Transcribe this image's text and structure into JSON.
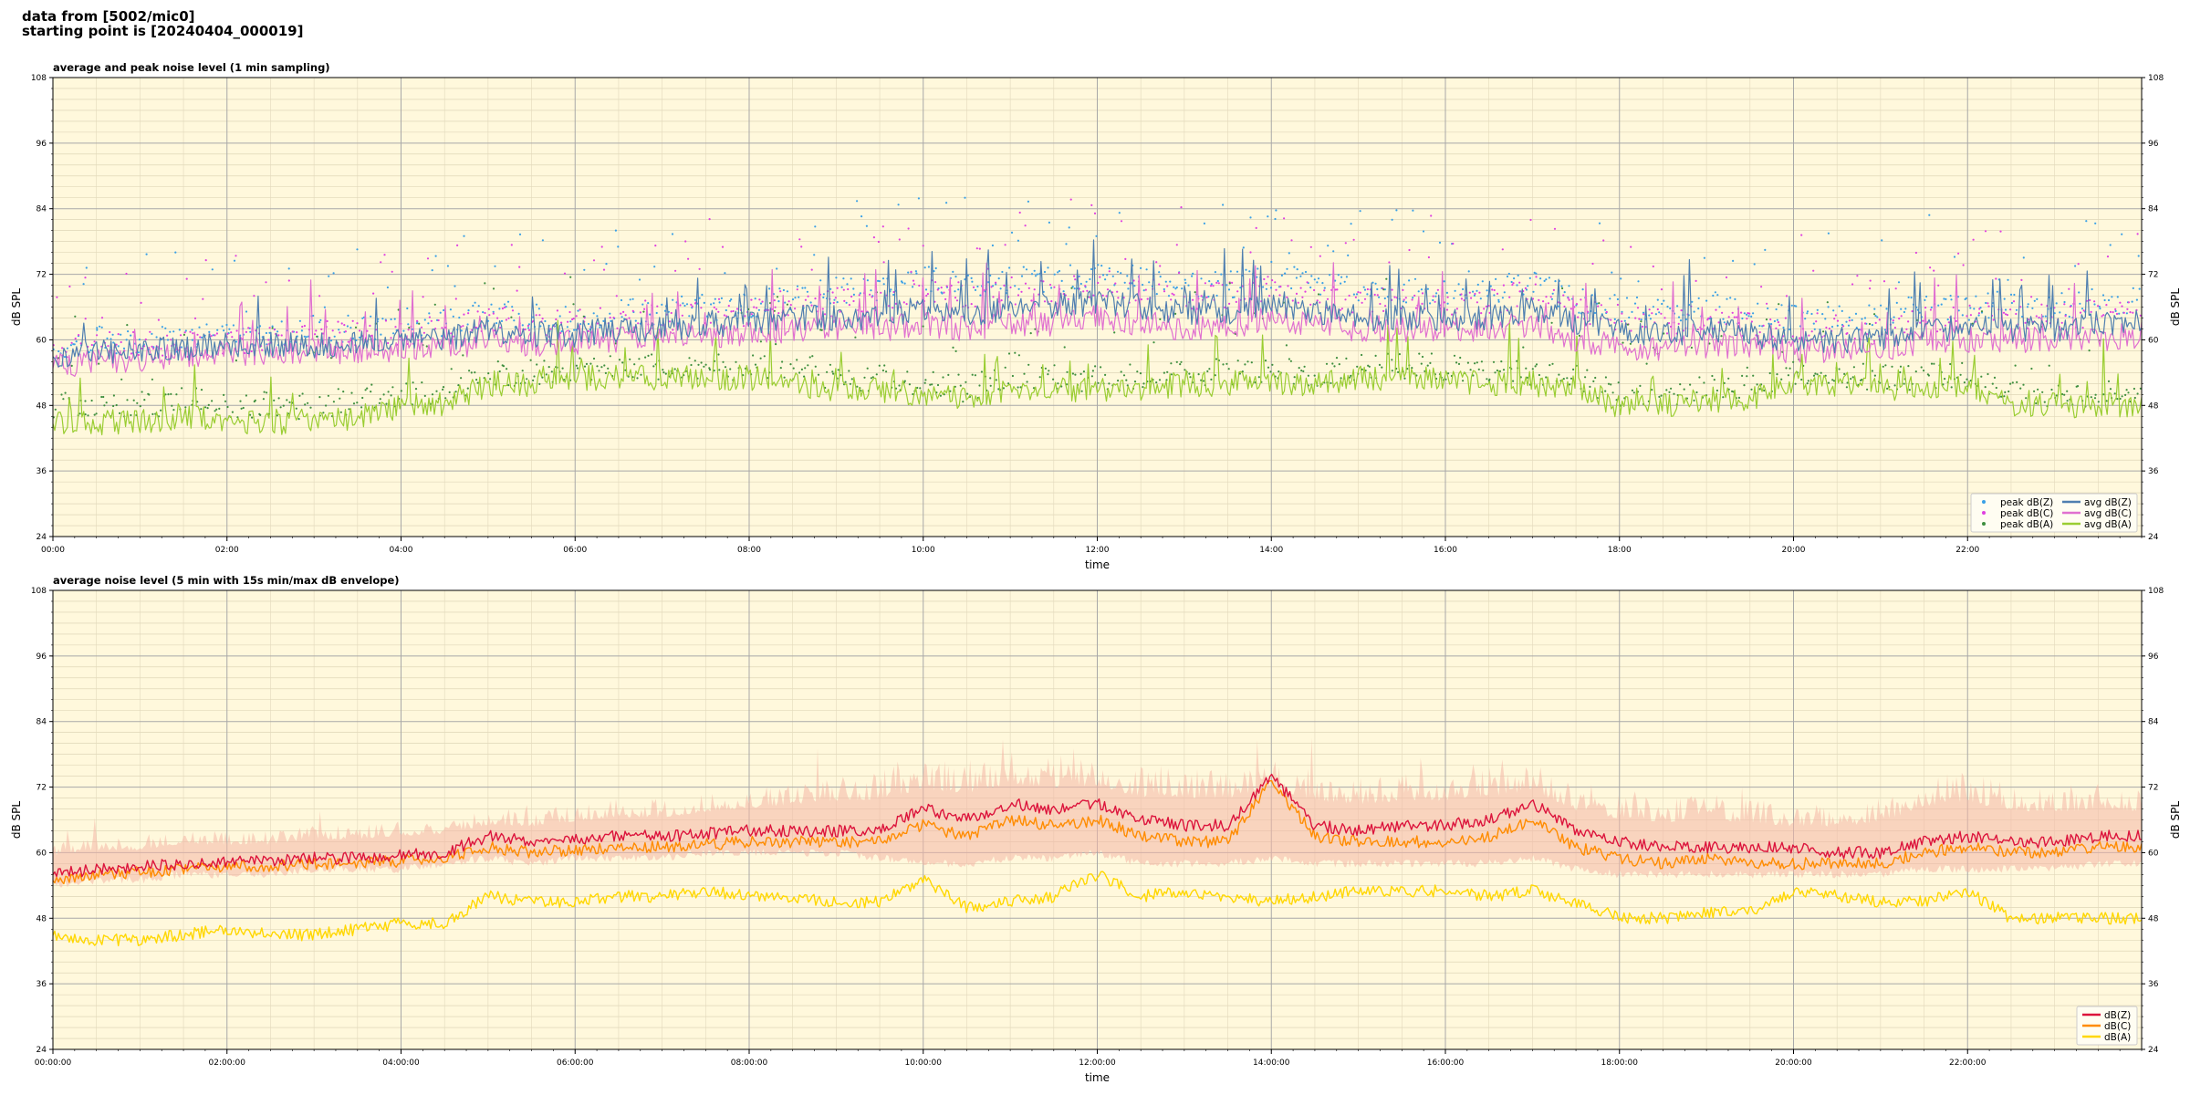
{
  "header": {
    "line1": "data from [5002/mic0]",
    "line2": "starting point is [20240404_000019]"
  },
  "colors": {
    "background": "#fff8dc",
    "peak_z": "#3aa0e6",
    "peak_c": "#e040e0",
    "peak_a": "#3f8f3f",
    "avg_z": "#4f7fb0",
    "avg_c": "#e070d0",
    "avg_a": "#9acd32",
    "env_z": "#dc143c",
    "env_c": "#ff8c00",
    "env_a": "#ffd700",
    "envelope_fill": "#f4b6a6"
  },
  "chart_data": [
    {
      "type": "line+scatter",
      "title": "average and peak noise level (1 min sampling)",
      "xlabel": "time",
      "ylabel": "dB SPL",
      "ylabel_right": "dB SPL",
      "x_unit": "hours",
      "xlim": [
        0,
        24
      ],
      "ylim": [
        24,
        108
      ],
      "x_ticks": [
        0,
        2,
        4,
        6,
        8,
        10,
        12,
        14,
        16,
        18,
        20,
        22
      ],
      "x_tick_labels": [
        "00:00",
        "02:00",
        "04:00",
        "06:00",
        "08:00",
        "10:00",
        "12:00",
        "14:00",
        "16:00",
        "18:00",
        "20:00",
        "22:00"
      ],
      "y_ticks": [
        24,
        36,
        48,
        60,
        72,
        84,
        96,
        108
      ],
      "y_tick_labels": [
        "24",
        "36",
        "48",
        "60",
        "72",
        "84",
        "96",
        "108"
      ],
      "grid": true,
      "legend_position": "lower-right",
      "legend": [
        "peak dB(Z)",
        "peak dB(C)",
        "peak dB(A)",
        "avg dB(Z)",
        "avg dB(C)",
        "avg dB(A)"
      ],
      "x": [
        0,
        0.5,
        1,
        1.5,
        2,
        2.5,
        3,
        3.5,
        4,
        4.5,
        5,
        5.5,
        6,
        6.5,
        7,
        7.5,
        8,
        8.5,
        9,
        9.5,
        10,
        10.5,
        11,
        11.5,
        12,
        12.5,
        13,
        13.5,
        14,
        14.5,
        15,
        15.5,
        16,
        16.5,
        17,
        17.5,
        18,
        18.5,
        19,
        19.5,
        20,
        20.5,
        21,
        21.5,
        22,
        22.5,
        23,
        23.5,
        24
      ],
      "series": [
        {
          "name": "avg dB(Z)",
          "kind": "line",
          "values": [
            57,
            58,
            58,
            58.5,
            59,
            59,
            59,
            59.5,
            60,
            60,
            62,
            61,
            61,
            62,
            62,
            63,
            63,
            64,
            64,
            64,
            66,
            64,
            66,
            66,
            67,
            66,
            65,
            65,
            67,
            65,
            64,
            64,
            64,
            64,
            66,
            63,
            62,
            61,
            62,
            61,
            60,
            60,
            60,
            62,
            62,
            62,
            62,
            63,
            63
          ]
        },
        {
          "name": "avg dB(C)",
          "kind": "line",
          "values": [
            55,
            56,
            56.5,
            57,
            57.5,
            57.5,
            58,
            58,
            58.5,
            58.5,
            60,
            59,
            59.5,
            60,
            60.5,
            61,
            61,
            62,
            62,
            62,
            63,
            62,
            63,
            63,
            64,
            63,
            62,
            62,
            64,
            63,
            62,
            62,
            62,
            62,
            63,
            60,
            59,
            58,
            59,
            59,
            58,
            58,
            58,
            60,
            60,
            60,
            60,
            60,
            61
          ]
        },
        {
          "name": "avg dB(A)",
          "kind": "line",
          "values": [
            45,
            45,
            45,
            46,
            45,
            45,
            45,
            46,
            48,
            48,
            52,
            52,
            53,
            53,
            53,
            53,
            53,
            52,
            51,
            51,
            50,
            49,
            51,
            51,
            51,
            51,
            52,
            52,
            52,
            52,
            53,
            53,
            53,
            52,
            52,
            51,
            48,
            48,
            49,
            49,
            52,
            52,
            51,
            51,
            52,
            48,
            48,
            48,
            48
          ]
        },
        {
          "name": "peak dB(Z)",
          "kind": "scatter",
          "values": [
            59,
            60,
            60,
            60,
            61,
            61,
            62,
            62,
            62,
            63,
            65,
            64,
            64,
            65,
            65,
            66,
            66,
            68,
            69,
            69,
            71,
            70,
            71,
            71,
            72,
            71,
            70,
            70,
            72,
            70,
            69,
            69,
            69,
            69,
            71,
            67,
            66,
            65,
            66,
            65,
            64,
            64,
            64,
            66,
            66,
            67,
            66,
            67,
            67
          ]
        },
        {
          "name": "peak dB(C)",
          "kind": "scatter",
          "values": [
            58,
            59,
            59,
            59,
            60,
            60,
            61,
            61,
            61,
            62,
            64,
            63,
            63,
            64,
            64,
            65,
            65,
            67,
            67,
            67,
            69,
            68,
            69,
            69,
            70,
            69,
            68,
            68,
            70,
            68,
            67,
            67,
            67,
            67,
            69,
            65,
            64,
            63,
            64,
            63,
            62,
            62,
            62,
            64,
            64,
            65,
            64,
            65,
            65
          ]
        },
        {
          "name": "peak dB(A)",
          "kind": "scatter",
          "values": [
            48,
            48,
            48,
            49,
            48,
            48,
            48,
            49,
            50,
            50,
            54,
            54,
            55,
            55,
            55,
            55,
            55,
            54,
            53,
            53,
            52,
            51,
            53,
            53,
            53,
            53,
            54,
            54,
            54,
            54,
            55,
            55,
            55,
            54,
            54,
            53,
            50,
            50,
            51,
            51,
            54,
            54,
            53,
            53,
            54,
            50,
            50,
            50,
            50
          ]
        }
      ]
    },
    {
      "type": "line+envelope",
      "title": "average noise level (5 min with 15s min/max dB envelope)",
      "xlabel": "time",
      "ylabel": "dB SPL",
      "ylabel_right": "dB SPL",
      "x_unit": "hours",
      "xlim": [
        0,
        24
      ],
      "ylim": [
        24,
        108
      ],
      "x_ticks": [
        0,
        2,
        4,
        6,
        8,
        10,
        12,
        14,
        16,
        18,
        20,
        22
      ],
      "x_tick_labels": [
        "00:00:00",
        "02:00:00",
        "04:00:00",
        "06:00:00",
        "08:00:00",
        "10:00:00",
        "12:00:00",
        "14:00:00",
        "16:00:00",
        "18:00:00",
        "20:00:00",
        "22:00:00"
      ],
      "y_ticks": [
        24,
        36,
        48,
        60,
        72,
        84,
        96,
        108
      ],
      "y_tick_labels": [
        "24",
        "36",
        "48",
        "60",
        "72",
        "84",
        "96",
        "108"
      ],
      "grid": true,
      "legend_position": "lower-right",
      "legend": [
        "dB(Z)",
        "dB(C)",
        "dB(A)"
      ],
      "x": [
        0,
        0.5,
        1,
        1.5,
        2,
        2.5,
        3,
        3.5,
        4,
        4.5,
        5,
        5.5,
        6,
        6.5,
        7,
        7.5,
        8,
        8.5,
        9,
        9.5,
        10,
        10.5,
        11,
        11.5,
        12,
        12.5,
        13,
        13.5,
        14,
        14.5,
        15,
        15.5,
        16,
        16.5,
        17,
        17.5,
        18,
        18.5,
        19,
        19.5,
        20,
        20.5,
        21,
        21.5,
        22,
        22.5,
        23,
        23.5,
        24
      ],
      "series": [
        {
          "name": "dB(Z)",
          "kind": "line",
          "values": [
            56,
            57,
            57.5,
            58,
            58.5,
            58.5,
            59,
            59,
            59.5,
            60,
            63,
            62,
            62.5,
            63,
            63,
            63.5,
            64,
            64,
            64,
            64,
            68,
            66,
            69,
            68,
            69,
            66,
            65,
            65,
            74,
            65,
            64,
            65,
            65,
            66,
            69,
            64,
            62,
            61,
            61,
            61,
            61,
            60,
            60,
            62,
            63,
            62,
            62,
            63,
            63
          ]
        },
        {
          "name": "dB(C)",
          "kind": "line",
          "values": [
            55,
            56,
            56.5,
            57,
            57.5,
            57.5,
            58,
            58,
            58.5,
            59,
            61,
            60,
            60.5,
            61,
            61,
            61.5,
            62,
            62,
            62,
            62,
            65,
            63,
            66,
            65,
            66,
            63,
            62,
            62,
            73,
            63,
            62,
            62,
            62,
            63,
            66,
            61,
            59,
            58,
            59,
            58,
            58,
            58,
            58,
            60,
            61,
            60,
            60,
            61,
            61
          ]
        },
        {
          "name": "dB(A)",
          "kind": "line",
          "values": [
            45,
            44,
            44,
            45,
            46,
            45,
            45,
            46,
            47,
            47,
            52,
            51,
            51,
            52,
            52,
            53,
            52,
            52,
            51,
            51,
            55,
            50,
            51,
            52,
            56,
            52,
            53,
            52,
            51,
            52,
            53,
            53,
            53,
            52,
            53,
            51,
            48,
            48,
            49,
            49,
            53,
            52,
            51,
            51,
            53,
            48,
            48,
            48,
            48
          ]
        },
        {
          "name": "envelope max",
          "kind": "band",
          "values": [
            62,
            63,
            63,
            64,
            64,
            64,
            65,
            65,
            66,
            66,
            68,
            68,
            69,
            70,
            70,
            71,
            72,
            73,
            74,
            75,
            78,
            77,
            79,
            78,
            78,
            76,
            76,
            75,
            78,
            75,
            74,
            75,
            75,
            76,
            77,
            73,
            71,
            70,
            71,
            70,
            69,
            69,
            70,
            74,
            75,
            73,
            72,
            73,
            72
          ]
        },
        {
          "name": "envelope min",
          "kind": "band",
          "values": [
            54,
            55,
            55,
            56,
            56,
            56,
            57,
            57,
            57,
            58,
            59,
            58,
            59,
            59,
            59,
            60,
            60,
            60,
            60,
            59,
            58,
            58,
            59,
            59,
            60,
            58,
            58,
            58,
            59,
            58,
            58,
            58,
            58,
            58,
            59,
            57,
            56,
            56,
            56,
            56,
            56,
            56,
            56,
            57,
            57,
            57,
            57,
            58,
            58
          ]
        }
      ]
    }
  ]
}
